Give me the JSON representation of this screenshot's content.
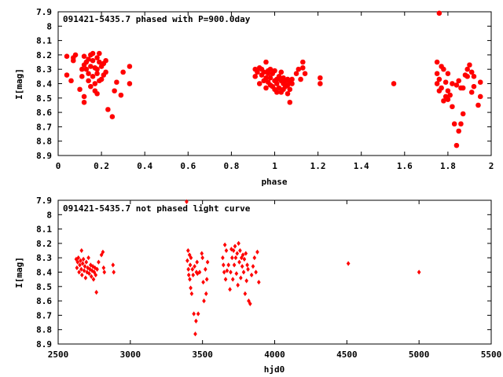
{
  "colors": {
    "marker": "#ff0000",
    "axis": "#000000",
    "background": "#ffffff"
  },
  "chart_data": [
    {
      "type": "scatter",
      "title": "091421-5435.7 phased with P=900.0day",
      "xlabel": "phase",
      "ylabel": "I[mag]",
      "xlim": [
        0,
        2
      ],
      "ylim": [
        7.9,
        8.9
      ],
      "y_inverted": true,
      "grid": false,
      "marker": "star",
      "xticks": [
        "0",
        "0.2",
        "0.4",
        "0.6",
        "0.8",
        "1",
        "1.2",
        "1.4",
        "1.6",
        "1.8",
        "2"
      ],
      "yticks": [
        "7.9",
        "8",
        "8.1",
        "8.2",
        "8.3",
        "8.4",
        "8.5",
        "8.6",
        "8.7",
        "8.8",
        "8.9"
      ],
      "points": [
        [
          0.04,
          8.21
        ],
        [
          0.04,
          8.34
        ],
        [
          0.06,
          8.38
        ],
        [
          0.07,
          8.22
        ],
        [
          0.08,
          8.2
        ],
        [
          0.07,
          8.24
        ],
        [
          0.1,
          8.44
        ],
        [
          0.11,
          8.3
        ],
        [
          0.11,
          8.35
        ],
        [
          0.12,
          8.27
        ],
        [
          0.12,
          8.21
        ],
        [
          0.12,
          8.49
        ],
        [
          0.12,
          8.53
        ],
        [
          0.13,
          8.3
        ],
        [
          0.13,
          8.25
        ],
        [
          0.14,
          8.23
        ],
        [
          0.14,
          8.33
        ],
        [
          0.14,
          8.38
        ],
        [
          0.15,
          8.28
        ],
        [
          0.15,
          8.42
        ],
        [
          0.15,
          8.2
        ],
        [
          0.16,
          8.19
        ],
        [
          0.16,
          8.24
        ],
        [
          0.16,
          8.35
        ],
        [
          0.17,
          8.45
        ],
        [
          0.17,
          8.4
        ],
        [
          0.17,
          8.29
        ],
        [
          0.18,
          8.33
        ],
        [
          0.18,
          8.22
        ],
        [
          0.18,
          8.3
        ],
        [
          0.18,
          8.47
        ],
        [
          0.19,
          8.25
        ],
        [
          0.19,
          8.38
        ],
        [
          0.19,
          8.19
        ],
        [
          0.2,
          8.28
        ],
        [
          0.2,
          8.37
        ],
        [
          0.21,
          8.26
        ],
        [
          0.21,
          8.34
        ],
        [
          0.22,
          8.24
        ],
        [
          0.22,
          8.32
        ],
        [
          0.23,
          8.58
        ],
        [
          0.25,
          8.63
        ],
        [
          0.26,
          8.45
        ],
        [
          0.27,
          8.39
        ],
        [
          0.29,
          8.48
        ],
        [
          0.3,
          8.32
        ],
        [
          0.33,
          8.28
        ],
        [
          0.33,
          8.4
        ],
        [
          0.91,
          8.3
        ],
        [
          0.91,
          8.35
        ],
        [
          0.92,
          8.32
        ],
        [
          0.93,
          8.4
        ],
        [
          0.93,
          8.29
        ],
        [
          0.94,
          8.34
        ],
        [
          0.94,
          8.3
        ],
        [
          0.95,
          8.38
        ],
        [
          0.95,
          8.32
        ],
        [
          0.96,
          8.43
        ],
        [
          0.96,
          8.25
        ],
        [
          0.96,
          8.36
        ],
        [
          0.97,
          8.31
        ],
        [
          0.97,
          8.39
        ],
        [
          0.97,
          8.33
        ],
        [
          0.98,
          8.41
        ],
        [
          0.98,
          8.3
        ],
        [
          0.98,
          8.36
        ],
        [
          0.99,
          8.42
        ],
        [
          0.99,
          8.33
        ],
        [
          1.0,
          8.38
        ],
        [
          1.0,
          8.44
        ],
        [
          1.0,
          8.31
        ],
        [
          1.01,
          8.37
        ],
        [
          1.01,
          8.46
        ],
        [
          1.01,
          8.4
        ],
        [
          1.02,
          8.35
        ],
        [
          1.02,
          8.43
        ],
        [
          1.03,
          8.38
        ],
        [
          1.03,
          8.46
        ],
        [
          1.03,
          8.32
        ],
        [
          1.04,
          8.4
        ],
        [
          1.04,
          8.36
        ],
        [
          1.04,
          8.44
        ],
        [
          1.05,
          8.42
        ],
        [
          1.05,
          8.38
        ],
        [
          1.06,
          8.41
        ],
        [
          1.06,
          8.47
        ],
        [
          1.06,
          8.37
        ],
        [
          1.07,
          8.39
        ],
        [
          1.07,
          8.53
        ],
        [
          1.07,
          8.44
        ],
        [
          1.08,
          8.4
        ],
        [
          1.08,
          8.37
        ],
        [
          1.1,
          8.33
        ],
        [
          1.11,
          8.3
        ],
        [
          1.12,
          8.37
        ],
        [
          1.13,
          8.25
        ],
        [
          1.13,
          8.29
        ],
        [
          1.14,
          8.33
        ],
        [
          1.21,
          8.36
        ],
        [
          1.21,
          8.4
        ],
        [
          1.55,
          8.4
        ],
        [
          1.76,
          7.91
        ],
        [
          1.75,
          8.25
        ],
        [
          1.75,
          8.33
        ],
        [
          1.75,
          8.4
        ],
        [
          1.76,
          8.37
        ],
        [
          1.76,
          8.45
        ],
        [
          1.77,
          8.28
        ],
        [
          1.77,
          8.43
        ],
        [
          1.78,
          8.3
        ],
        [
          1.78,
          8.52
        ],
        [
          1.79,
          8.39
        ],
        [
          1.79,
          8.49
        ],
        [
          1.8,
          8.33
        ],
        [
          1.8,
          8.51
        ],
        [
          1.8,
          8.45
        ],
        [
          1.81,
          8.48
        ],
        [
          1.82,
          8.4
        ],
        [
          1.82,
          8.56
        ],
        [
          1.83,
          8.68
        ],
        [
          1.84,
          8.41
        ],
        [
          1.84,
          8.83
        ],
        [
          1.85,
          8.73
        ],
        [
          1.85,
          8.38
        ],
        [
          1.86,
          8.68
        ],
        [
          1.86,
          8.43
        ],
        [
          1.87,
          8.43
        ],
        [
          1.87,
          8.61
        ],
        [
          1.88,
          8.34
        ],
        [
          1.89,
          8.3
        ],
        [
          1.89,
          8.35
        ],
        [
          1.9,
          8.27
        ],
        [
          1.91,
          8.32
        ],
        [
          1.91,
          8.46
        ],
        [
          1.92,
          8.35
        ],
        [
          1.92,
          8.42
        ],
        [
          1.94,
          8.55
        ],
        [
          1.95,
          8.39
        ],
        [
          1.95,
          8.49
        ]
      ]
    },
    {
      "type": "scatter",
      "title": "091421-5435.7 not phased light curve",
      "xlabel": "hjd0",
      "ylabel": "I[mag]",
      "xlim": [
        2500,
        5500
      ],
      "ylim": [
        7.9,
        8.9
      ],
      "y_inverted": true,
      "grid": false,
      "marker": "diamond",
      "xticks": [
        "2500",
        "3000",
        "3500",
        "4000",
        "4500",
        "5000",
        "5500"
      ],
      "yticks": [
        "7.9",
        "8",
        "8.1",
        "8.2",
        "8.3",
        "8.4",
        "8.5",
        "8.6",
        "8.7",
        "8.8",
        "8.9"
      ],
      "points": [
        [
          2625,
          8.31
        ],
        [
          2630,
          8.37
        ],
        [
          2635,
          8.33
        ],
        [
          2640,
          8.3
        ],
        [
          2645,
          8.4
        ],
        [
          2650,
          8.35
        ],
        [
          2655,
          8.32
        ],
        [
          2660,
          8.38
        ],
        [
          2662,
          8.25
        ],
        [
          2665,
          8.42
        ],
        [
          2670,
          8.34
        ],
        [
          2675,
          8.31
        ],
        [
          2680,
          8.39
        ],
        [
          2685,
          8.36
        ],
        [
          2690,
          8.44
        ],
        [
          2695,
          8.33
        ],
        [
          2700,
          8.4
        ],
        [
          2705,
          8.37
        ],
        [
          2710,
          8.3
        ],
        [
          2715,
          8.41
        ],
        [
          2720,
          8.38
        ],
        [
          2725,
          8.35
        ],
        [
          2730,
          8.43
        ],
        [
          2735,
          8.39
        ],
        [
          2740,
          8.36
        ],
        [
          2745,
          8.45
        ],
        [
          2750,
          8.4
        ],
        [
          2755,
          8.37
        ],
        [
          2760,
          8.42
        ],
        [
          2765,
          8.54
        ],
        [
          2770,
          8.38
        ],
        [
          2780,
          8.33
        ],
        [
          2800,
          8.28
        ],
        [
          2810,
          8.26
        ],
        [
          2815,
          8.37
        ],
        [
          2820,
          8.4
        ],
        [
          2880,
          8.35
        ],
        [
          2885,
          8.4
        ],
        [
          3390,
          7.91
        ],
        [
          3395,
          8.32
        ],
        [
          3400,
          8.25
        ],
        [
          3402,
          8.38
        ],
        [
          3405,
          8.42
        ],
        [
          3410,
          8.28
        ],
        [
          3412,
          8.45
        ],
        [
          3415,
          8.35
        ],
        [
          3418,
          8.51
        ],
        [
          3420,
          8.3
        ],
        [
          3425,
          8.55
        ],
        [
          3430,
          8.38
        ],
        [
          3435,
          8.42
        ],
        [
          3440,
          8.69
        ],
        [
          3445,
          8.36
        ],
        [
          3450,
          8.83
        ],
        [
          3455,
          8.74
        ],
        [
          3458,
          8.4
        ],
        [
          3462,
          8.33
        ],
        [
          3465,
          8.41
        ],
        [
          3470,
          8.69
        ],
        [
          3480,
          8.4
        ],
        [
          3495,
          8.27
        ],
        [
          3500,
          8.3
        ],
        [
          3505,
          8.47
        ],
        [
          3510,
          8.6
        ],
        [
          3520,
          8.38
        ],
        [
          3525,
          8.55
        ],
        [
          3530,
          8.45
        ],
        [
          3535,
          8.33
        ],
        [
          3640,
          8.3
        ],
        [
          3645,
          8.35
        ],
        [
          3650,
          8.4
        ],
        [
          3655,
          8.21
        ],
        [
          3660,
          8.45
        ],
        [
          3665,
          8.25
        ],
        [
          3670,
          8.39
        ],
        [
          3680,
          8.35
        ],
        [
          3690,
          8.52
        ],
        [
          3695,
          8.4
        ],
        [
          3700,
          8.24
        ],
        [
          3705,
          8.3
        ],
        [
          3710,
          8.45
        ],
        [
          3715,
          8.25
        ],
        [
          3720,
          8.35
        ],
        [
          3725,
          8.22
        ],
        [
          3730,
          8.3
        ],
        [
          3735,
          8.41
        ],
        [
          3740,
          8.27
        ],
        [
          3745,
          8.49
        ],
        [
          3750,
          8.2
        ],
        [
          3755,
          8.33
        ],
        [
          3760,
          8.25
        ],
        [
          3765,
          8.44
        ],
        [
          3770,
          8.3
        ],
        [
          3775,
          8.36
        ],
        [
          3780,
          8.28
        ],
        [
          3785,
          8.4
        ],
        [
          3790,
          8.31
        ],
        [
          3795,
          8.55
        ],
        [
          3800,
          8.27
        ],
        [
          3805,
          8.46
        ],
        [
          3810,
          8.35
        ],
        [
          3815,
          8.38
        ],
        [
          3820,
          8.6
        ],
        [
          3830,
          8.62
        ],
        [
          3840,
          8.42
        ],
        [
          3850,
          8.36
        ],
        [
          3860,
          8.3
        ],
        [
          3870,
          8.4
        ],
        [
          3880,
          8.26
        ],
        [
          3890,
          8.47
        ],
        [
          4510,
          8.34
        ],
        [
          5000,
          8.4
        ]
      ]
    }
  ]
}
